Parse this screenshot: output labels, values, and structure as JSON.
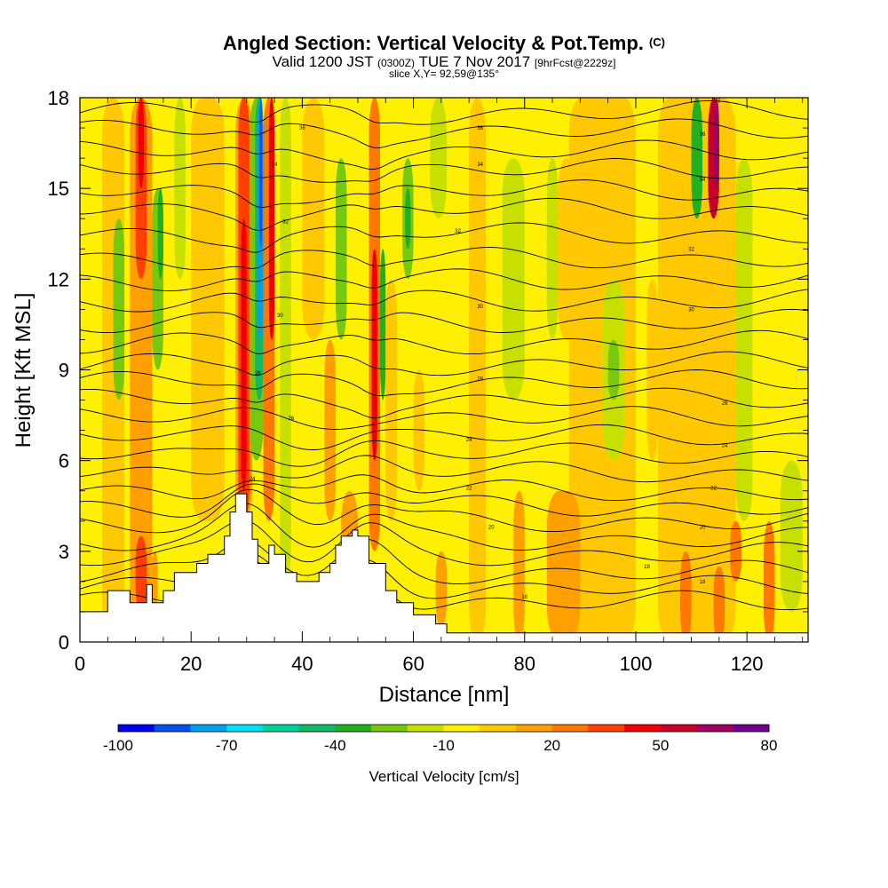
{
  "title": {
    "main": "Angled Section: Vertical Velocity & Pot.Temp.",
    "main_suffix": "(C)",
    "valid_prefix": "Valid 1200 JST",
    "valid_zulu": "(0300Z)",
    "valid_date": "TUE 7 Nov 2017",
    "forecast": "[9hrFcst@2229z]",
    "slice": "slice X,Y= 92,59@135°"
  },
  "chart_data": {
    "type": "heatmap",
    "xlabel": "Distance [nm]",
    "ylabel": "Height [Kft MSL]",
    "xlim": [
      0,
      131
    ],
    "ylim": [
      0,
      18
    ],
    "xticks": [
      "0",
      "20",
      "40",
      "60",
      "80",
      "100",
      "120"
    ],
    "yticks": [
      "0",
      "3",
      "6",
      "9",
      "12",
      "15",
      "18"
    ],
    "colorbar": {
      "title": "Vertical Velocity [cm/s]",
      "range": [
        -100,
        80
      ],
      "step": 10,
      "labels": [
        "-100",
        "-70",
        "-40",
        "-10",
        "20",
        "50",
        "80"
      ],
      "colors": [
        "#0000f0",
        "#0050f0",
        "#00a0f0",
        "#00e0f0",
        "#00d098",
        "#10b868",
        "#20b020",
        "#78c810",
        "#c8e000",
        "#ffef00",
        "#ffc800",
        "#ffa000",
        "#ff7800",
        "#ff4000",
        "#f00000",
        "#c80028",
        "#a00060",
        "#700090"
      ]
    },
    "potential_temperature_labels": [
      {
        "x": 40,
        "y": 17.0,
        "text": "36"
      },
      {
        "x": 72,
        "y": 17.0,
        "text": "36"
      },
      {
        "x": 112,
        "y": 16.8,
        "text": "36"
      },
      {
        "x": 35,
        "y": 15.8,
        "text": "34"
      },
      {
        "x": 72,
        "y": 15.8,
        "text": "34"
      },
      {
        "x": 112,
        "y": 15.3,
        "text": "34"
      },
      {
        "x": 37,
        "y": 13.9,
        "text": "32"
      },
      {
        "x": 68,
        "y": 13.6,
        "text": "32"
      },
      {
        "x": 110,
        "y": 13.0,
        "text": "32"
      },
      {
        "x": 36,
        "y": 10.8,
        "text": "30"
      },
      {
        "x": 72,
        "y": 11.1,
        "text": "30"
      },
      {
        "x": 110,
        "y": 11.0,
        "text": "30"
      },
      {
        "x": 32,
        "y": 8.9,
        "text": "28"
      },
      {
        "x": 72,
        "y": 8.7,
        "text": "28"
      },
      {
        "x": 116,
        "y": 7.9,
        "text": "26"
      },
      {
        "x": 38,
        "y": 7.4,
        "text": "26"
      },
      {
        "x": 70,
        "y": 6.7,
        "text": "24"
      },
      {
        "x": 116,
        "y": 6.5,
        "text": "24"
      },
      {
        "x": 31,
        "y": 5.4,
        "text": "24"
      },
      {
        "x": 70,
        "y": 5.1,
        "text": "22"
      },
      {
        "x": 114,
        "y": 5.1,
        "text": "22"
      },
      {
        "x": 74,
        "y": 3.8,
        "text": "20"
      },
      {
        "x": 112,
        "y": 3.8,
        "text": "20"
      },
      {
        "x": 102,
        "y": 2.5,
        "text": "18"
      },
      {
        "x": 112,
        "y": 2.0,
        "text": "16"
      },
      {
        "x": 80,
        "y": 1.5,
        "text": "16"
      }
    ]
  }
}
